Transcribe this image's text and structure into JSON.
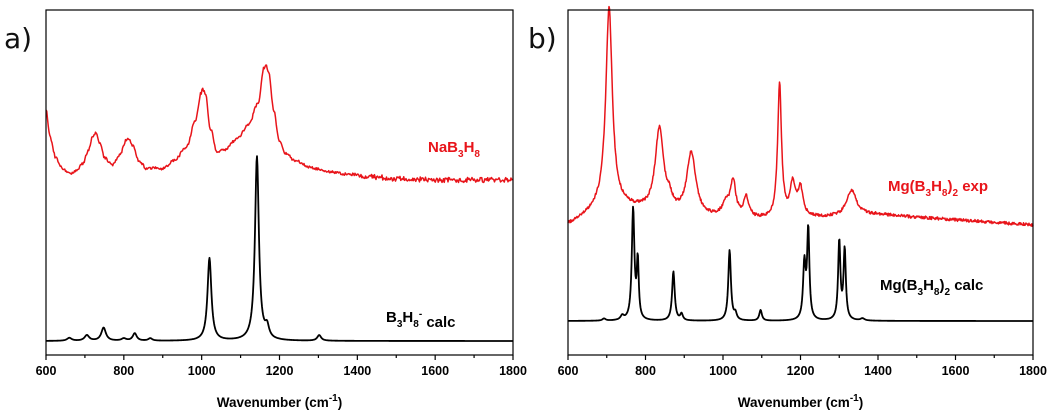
{
  "chart_data": [
    {
      "type": "line",
      "panel_label": "a)",
      "xlabel_base": "Wavenumber (cm",
      "xlabel_sup": "-1",
      "xlabel_end": ")",
      "xlim": [
        600,
        1800
      ],
      "x_ticks": [
        600,
        800,
        1000,
        1200,
        1400,
        1600,
        1800
      ],
      "y_ticks_visible": false,
      "grid": false,
      "series": [
        {
          "name": "NaB3H8",
          "label_parts": [
            {
              "t": "NaB",
              "sub": false
            },
            {
              "t": "3",
              "sub": true
            },
            {
              "t": "H",
              "sub": false
            },
            {
              "t": "8",
              "sub": true
            }
          ],
          "color": "#e8141a",
          "x": [
            600,
            610,
            625,
            640,
            655,
            668,
            680,
            695,
            710,
            720,
            728,
            738,
            750,
            770,
            790,
            805,
            812,
            822,
            840,
            860,
            880,
            900,
            930,
            960,
            985,
            998,
            1003,
            1010,
            1022,
            1040,
            1060,
            1090,
            1120,
            1145,
            1160,
            1165,
            1172,
            1185,
            1200,
            1215,
            1240,
            1280,
            1320,
            1380,
            1450,
            1500,
            1550,
            1600,
            1650,
            1700,
            1750,
            1800
          ],
          "y": [
            0.86,
            0.66,
            0.51,
            0.44,
            0.41,
            0.4,
            0.42,
            0.47,
            0.57,
            0.66,
            0.69,
            0.62,
            0.51,
            0.46,
            0.53,
            0.63,
            0.65,
            0.6,
            0.48,
            0.43,
            0.44,
            0.43,
            0.49,
            0.58,
            0.78,
            0.97,
            1.0,
            0.96,
            0.72,
            0.55,
            0.57,
            0.64,
            0.74,
            0.9,
            1.15,
            1.17,
            1.12,
            0.85,
            0.62,
            0.54,
            0.49,
            0.44,
            0.41,
            0.39,
            0.37,
            0.36,
            0.355,
            0.35,
            0.35,
            0.35,
            0.35,
            0.35
          ]
        },
        {
          "name": "B3H8- calc",
          "label_parts": [
            {
              "t": "B",
              "sub": false
            },
            {
              "t": "3",
              "sub": true
            },
            {
              "t": "H",
              "sub": false
            },
            {
              "t": "8",
              "sub": true
            },
            {
              "t": "-",
              "sup": true
            },
            {
              "t": " calc",
              "sub": false
            }
          ],
          "color": "#000000",
          "baseline": 0.0,
          "peaks": [
            {
              "x": 660,
              "h": 0.016,
              "w": 7
            },
            {
              "x": 705,
              "h": 0.03,
              "w": 7
            },
            {
              "x": 748,
              "h": 0.07,
              "w": 7
            },
            {
              "x": 800,
              "h": 0.012,
              "w": 7
            },
            {
              "x": 828,
              "h": 0.04,
              "w": 6
            },
            {
              "x": 868,
              "h": 0.013,
              "w": 6
            },
            {
              "x": 1020,
              "h": 0.44,
              "w": 6
            },
            {
              "x": 1142,
              "h": 0.98,
              "w": 6
            },
            {
              "x": 1168,
              "h": 0.06,
              "w": 6
            },
            {
              "x": 1302,
              "h": 0.03,
              "w": 6
            }
          ]
        }
      ]
    },
    {
      "type": "line",
      "panel_label": "b)",
      "xlabel_base": "Wavenumber (cm",
      "xlabel_sup": "-1",
      "xlabel_end": ")",
      "xlim": [
        600,
        1800
      ],
      "x_ticks": [
        600,
        800,
        1000,
        1200,
        1400,
        1600,
        1800
      ],
      "y_ticks_visible": false,
      "grid": false,
      "series": [
        {
          "name": "Mg(B3H8)2 exp",
          "label_parts": [
            {
              "t": "Mg(B",
              "sub": false
            },
            {
              "t": "3",
              "sub": true
            },
            {
              "t": "H",
              "sub": false
            },
            {
              "t": "8",
              "sub": true
            },
            {
              "t": ")",
              "sub": false
            },
            {
              "t": "2",
              "sub": true
            },
            {
              "t": " exp",
              "sub": false
            }
          ],
          "color": "#e8141a",
          "baseline": 0.0,
          "baseline_curve": [
            [
              600,
              0.0
            ],
            [
              700,
              0.08
            ],
            [
              900,
              0.03
            ],
            [
              1100,
              0.02
            ],
            [
              1300,
              0.03
            ],
            [
              1400,
              0.04
            ],
            [
              1600,
              0.02
            ],
            [
              1800,
              0.0
            ]
          ],
          "peaks": [
            {
              "x": 706,
              "h": 0.78,
              "w": 10
            },
            {
              "x": 836,
              "h": 0.33,
              "w": 13
            },
            {
              "x": 862,
              "h": 0.04,
              "w": 8
            },
            {
              "x": 918,
              "h": 0.25,
              "w": 14
            },
            {
              "x": 1008,
              "h": 0.05,
              "w": 12
            },
            {
              "x": 1026,
              "h": 0.14,
              "w": 8
            },
            {
              "x": 1060,
              "h": 0.08,
              "w": 8
            },
            {
              "x": 1146,
              "h": 0.53,
              "w": 6
            },
            {
              "x": 1180,
              "h": 0.13,
              "w": 8
            },
            {
              "x": 1200,
              "h": 0.11,
              "w": 8
            },
            {
              "x": 1332,
              "h": 0.1,
              "w": 16
            }
          ]
        },
        {
          "name": "Mg(B3H8)2 calc",
          "label_parts": [
            {
              "t": "Mg(B",
              "sub": false
            },
            {
              "t": "3",
              "sub": true
            },
            {
              "t": "H",
              "sub": false
            },
            {
              "t": "8",
              "sub": true
            },
            {
              "t": ")",
              "sub": false
            },
            {
              "t": "2",
              "sub": true
            },
            {
              "t": " calc",
              "sub": false
            }
          ],
          "color": "#000000",
          "baseline": 0.0,
          "peaks": [
            {
              "x": 693,
              "h": 0.01,
              "w": 5
            },
            {
              "x": 740,
              "h": 0.02,
              "w": 5
            },
            {
              "x": 768,
              "h": 0.52,
              "w": 4
            },
            {
              "x": 780,
              "h": 0.27,
              "w": 3
            },
            {
              "x": 872,
              "h": 0.23,
              "w": 4
            },
            {
              "x": 893,
              "h": 0.03,
              "w": 4
            },
            {
              "x": 1017,
              "h": 0.33,
              "w": 4
            },
            {
              "x": 1032,
              "h": 0.03,
              "w": 4
            },
            {
              "x": 1097,
              "h": 0.05,
              "w": 4
            },
            {
              "x": 1210,
              "h": 0.26,
              "w": 4
            },
            {
              "x": 1220,
              "h": 0.42,
              "w": 3.5
            },
            {
              "x": 1300,
              "h": 0.37,
              "w": 3.5
            },
            {
              "x": 1314,
              "h": 0.33,
              "w": 3.5
            },
            {
              "x": 1360,
              "h": 0.01,
              "w": 6
            }
          ]
        }
      ]
    }
  ]
}
